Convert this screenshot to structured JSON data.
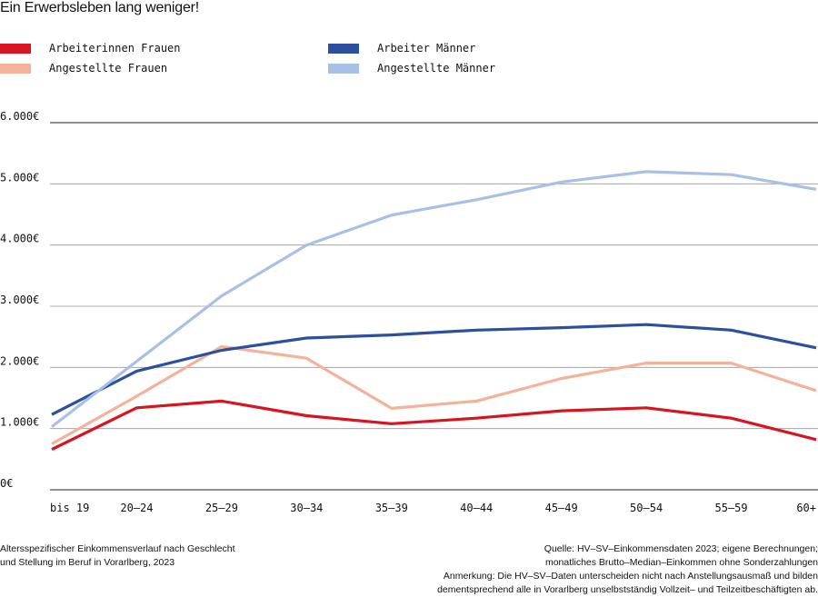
{
  "title": "Ein Erwerbsleben lang weniger!",
  "caption": {
    "line1": "Altersspezifischer Einkommensverlauf nach Geschlecht",
    "line2": "und Stellung im Beruf in Vorarlberg, 2023"
  },
  "notes": {
    "line1": "Quelle: HV–SV–Einkommensdaten 2023; eigene Berechnungen;",
    "line2": "monatliches Brutto–Median–Einkommen ohne Sonderzahlungen",
    "line3": "Anmerkung: Die HV–SV–Daten unterscheiden nicht nach Anstellungsausmaß und bilden",
    "line4": "dementsprechend alle in Vorarlberg unselbstständig Vollzeit– und Teilzeitbeschäftigten ab."
  },
  "chart_data": {
    "type": "line",
    "categories": [
      "bis 19",
      "20–24",
      "25–29",
      "30–34",
      "35–39",
      "40–44",
      "45–49",
      "50–54",
      "55–59",
      "60+"
    ],
    "y_ticks": [
      "0€",
      "1.000€",
      "2.000€",
      "3.000€",
      "4.000€",
      "5.000€",
      "6.000€"
    ],
    "ylim": [
      0,
      6000
    ],
    "grid": true,
    "legend_position": "top",
    "series": [
      {
        "name": "Arbeiterinnen Frauen",
        "color": "#d7141f",
        "values": [
          660,
          1340,
          1450,
          1210,
          1080,
          1170,
          1290,
          1340,
          1170,
          820
        ]
      },
      {
        "name": "Angestellte Frauen",
        "color": "#f4b29b",
        "values": [
          750,
          1530,
          2340,
          2150,
          1330,
          1450,
          1820,
          2070,
          2070,
          1620
        ]
      },
      {
        "name": "Arbeiter Männer",
        "color": "#2c4f9e",
        "values": [
          1230,
          1940,
          2280,
          2480,
          2530,
          2610,
          2650,
          2700,
          2610,
          2320
        ]
      },
      {
        "name": "Angestellte Männer",
        "color": "#a8c0e6",
        "values": [
          1030,
          2100,
          3170,
          4000,
          4490,
          4740,
          5030,
          5200,
          5150,
          4910
        ]
      }
    ]
  }
}
